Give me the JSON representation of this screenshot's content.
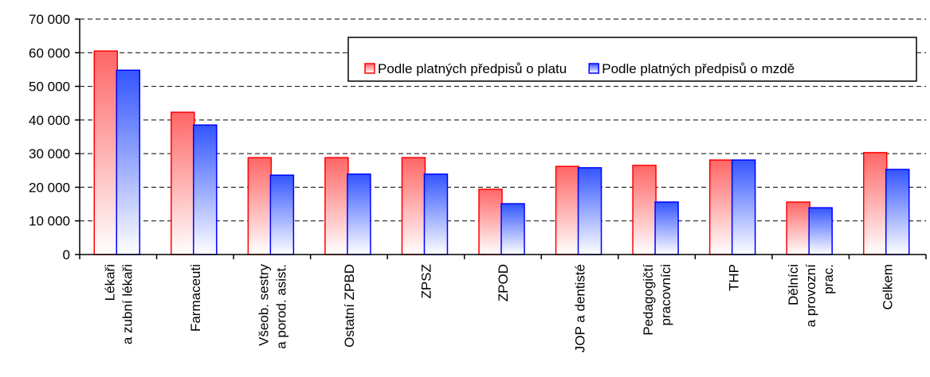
{
  "chart_data": {
    "type": "bar",
    "categories": [
      "Lékaři\na zubní lékaři",
      "Farmaceuti",
      "Všeob. sestry\na porod. asist.",
      "Ostatní ZPBD",
      "ZPSZ",
      "ZPOD",
      "JOP a dentisté",
      "Pedagogičtí\npracovníci",
      "THP",
      "Dělníci\na provozní\nprac.",
      "Celkem"
    ],
    "series": [
      {
        "name": "Podle platných předpisů o platu",
        "color": "#ff0000",
        "values": [
          60500,
          42300,
          28800,
          28800,
          28800,
          19400,
          26200,
          26500,
          28100,
          15600,
          30300
        ]
      },
      {
        "name": "Podle platných předpisů o mzdě",
        "color": "#0000ff",
        "values": [
          54800,
          38500,
          23600,
          23900,
          23900,
          15100,
          25800,
          15600,
          28100,
          13900,
          25300
        ]
      }
    ],
    "ylim": [
      0,
      70000
    ],
    "yticks": [
      0,
      {
        "value": 10000,
        "label": "10 000"
      },
      {
        "value": 20000,
        "label": "20 000"
      },
      {
        "value": 30000,
        "label": "30 000"
      },
      {
        "value": 40000,
        "label": "40 000"
      },
      {
        "value": 50000,
        "label": "50 000"
      },
      {
        "value": 60000,
        "label": "60 000"
      },
      {
        "value": 70000,
        "label": "70 000"
      }
    ],
    "grid": true,
    "legend": "top-right"
  }
}
